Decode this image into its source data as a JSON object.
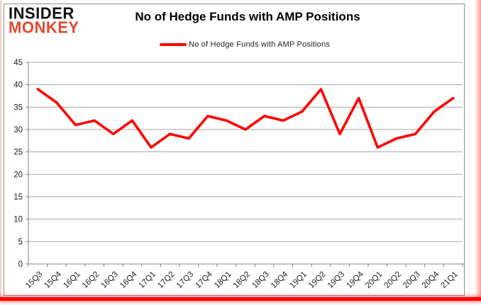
{
  "logo": {
    "top": "INSIDER",
    "bottom": "MONKEY",
    "top_color": "#121212",
    "bottom_color": "#df4a31"
  },
  "header": {
    "title": "No of Hedge Funds with AMP Positions"
  },
  "legend": {
    "label": "No of Hedge Funds with AMP Positions",
    "line_color": "#ff0000"
  },
  "chart_data": {
    "type": "line",
    "title": "No of Hedge Funds with AMP Positions",
    "categories": [
      "15Q3",
      "15Q4",
      "16Q1",
      "16Q2",
      "16Q3",
      "16Q4",
      "17Q1",
      "17Q2",
      "17Q3",
      "17Q4",
      "18Q1",
      "18Q2",
      "18Q3",
      "18Q4",
      "19Q1",
      "19Q2",
      "19Q3",
      "19Q4",
      "20Q1",
      "20Q2",
      "20Q3",
      "20Q4",
      "21Q1"
    ],
    "series": [
      {
        "name": "No of Hedge Funds with AMP Positions",
        "color": "#ff0000",
        "values": [
          39,
          36,
          31,
          32,
          29,
          32,
          26,
          29,
          28,
          33,
          32,
          30,
          33,
          32,
          34,
          39,
          29,
          37,
          26,
          28,
          29,
          34,
          37
        ]
      }
    ],
    "xlabel": "",
    "ylabel": "",
    "ylim": [
      0,
      45
    ],
    "yticks": [
      0,
      5,
      10,
      15,
      20,
      25,
      30,
      35,
      40,
      45
    ],
    "grid": true,
    "grid_color": "#a6a6a6",
    "axis_color": "#808080",
    "tick_label_color": "#1f1f1f",
    "legend_position": "top"
  }
}
